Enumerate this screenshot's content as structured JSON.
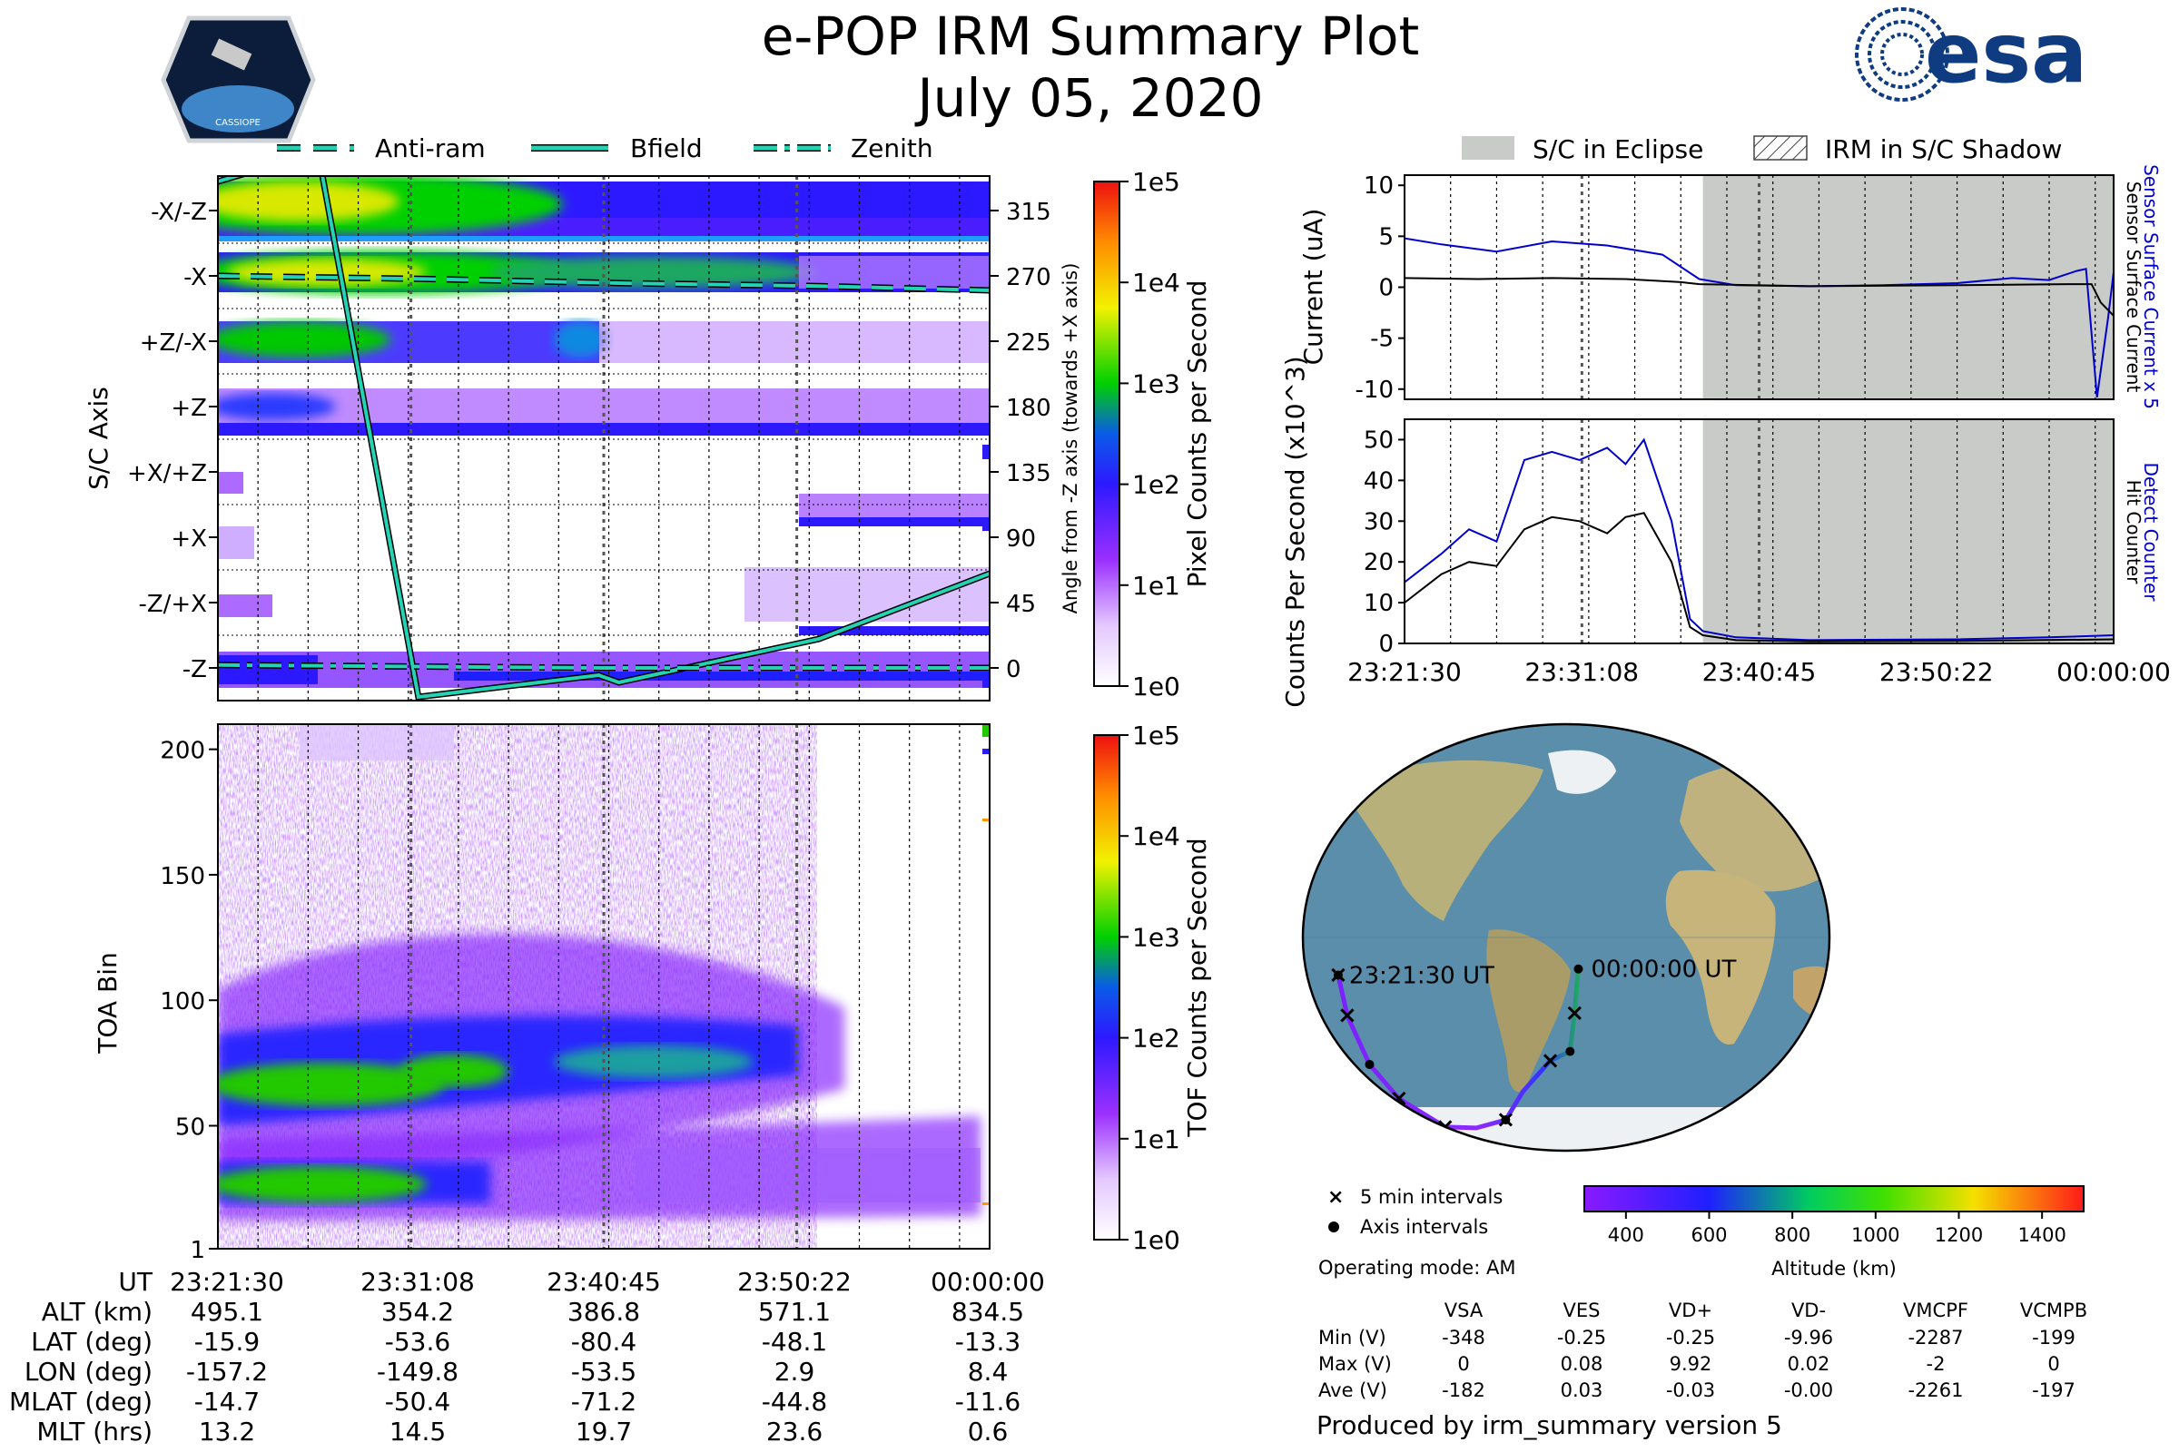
{
  "header": {
    "title": "e-POP IRM Summary Plot",
    "date": "July 05, 2020",
    "logo_left": "CASSIOPE",
    "logo_right": "esa"
  },
  "legend_top_left": [
    {
      "label": "Anti-ram",
      "style": "dashed"
    },
    {
      "label": "Bfield",
      "style": "solid"
    },
    {
      "label": "Zenith",
      "style": "dashdot"
    }
  ],
  "legend_top_right": [
    {
      "label": "S/C in Eclipse",
      "style": "gray"
    },
    {
      "label": "IRM in S/C Shadow",
      "style": "hatch"
    }
  ],
  "colors": {
    "accent_line": "#25d3b4",
    "eclipse_gray": "#c8cbc8",
    "sensor_blue": "#0000cc",
    "ocean": "#5b8eaa",
    "land": "#b5a878"
  },
  "time_ticks": [
    "23:21:30",
    "23:31:08",
    "23:40:45",
    "23:50:22",
    "00:00:00"
  ],
  "chart_data": [
    {
      "type": "heatmap",
      "id": "sc_axis_panel",
      "ylabel": "S/C Axis",
      "y_categories": [
        "-X/-Z",
        "-X",
        "+Z/-X",
        "+Z",
        "+X/+Z",
        "+X",
        "-Z/+X",
        "-Z"
      ],
      "right_axis_label": "Angle from -Z axis (towards +X axis)",
      "right_axis_ticks": [
        315,
        270,
        225,
        180,
        135,
        90,
        45,
        0
      ],
      "colorbar": {
        "label": "Pixel Counts per Second",
        "ticks": [
          "1e5",
          "1e4",
          "1e3",
          "1e2",
          "1e1",
          "1e0"
        ]
      },
      "series": [
        {
          "name": "Anti-ram",
          "x_min": [
            0,
            10,
            20,
            30,
            38.5
          ],
          "angle_deg": [
            270,
            268,
            265,
            263,
            260
          ]
        },
        {
          "name": "Bfield",
          "x_min": [
            0,
            5,
            10,
            19,
            20,
            30,
            38.5
          ],
          "angle_deg": [
            335,
            355,
            -20,
            -5,
            -10,
            20,
            65
          ]
        },
        {
          "name": "Zenith",
          "x_min": [
            0,
            19.2,
            38.5
          ],
          "angle_deg": [
            2,
            0,
            0
          ]
        }
      ]
    },
    {
      "type": "heatmap",
      "id": "toa_panel",
      "ylabel": "TOA Bin",
      "y_ticks": [
        1,
        50,
        100,
        150,
        200
      ],
      "ylim": [
        1,
        210
      ],
      "colorbar": {
        "label": "TOF Counts per Second",
        "ticks": [
          "1e5",
          "1e4",
          "1e3",
          "1e2",
          "1e1",
          "1e0"
        ]
      },
      "bands": [
        {
          "name": "upper",
          "x_min": [
            0,
            10,
            20,
            28
          ],
          "center_bin": [
            62,
            68,
            73,
            78
          ]
        },
        {
          "name": "lower",
          "x_min": [
            0,
            14,
            38.5
          ],
          "center_bin": [
            27,
            25,
            25
          ]
        }
      ]
    },
    {
      "type": "line",
      "id": "current_panel",
      "ylabel": "Current (uA)",
      "ylim": [
        -11,
        11
      ],
      "y_ticks": [
        10,
        5,
        0,
        -5,
        -10
      ],
      "right_labels": [
        "Sensor Surface Current x 5",
        "Sensor Surface Current"
      ],
      "eclipse_start_min": 16.2,
      "series": [
        {
          "name": "Sensor Surface Current x 5",
          "color": "#0000cc",
          "x_min": [
            0,
            2,
            5,
            8,
            11,
            14,
            16,
            18,
            22,
            26,
            30,
            33,
            35,
            36.5,
            37,
            37.6,
            38.2,
            38.5
          ],
          "values": [
            4.8,
            4.2,
            3.5,
            4.5,
            4.1,
            3.2,
            0.8,
            0.2,
            0.1,
            0.2,
            0.4,
            0.9,
            0.7,
            1.6,
            1.8,
            -10.8,
            -3,
            1.5
          ]
        },
        {
          "name": "Sensor Surface Current",
          "color": "#000000",
          "x_min": [
            0,
            4,
            8,
            12,
            15,
            16,
            22,
            30,
            36,
            37.3,
            37.8,
            38.5
          ],
          "values": [
            0.9,
            0.8,
            0.9,
            0.8,
            0.5,
            0.3,
            0.1,
            0.2,
            0.3,
            0.3,
            -1.5,
            -2.8
          ]
        }
      ]
    },
    {
      "type": "line",
      "id": "counts_panel",
      "ylabel": "Counts Per Second (x10^3)",
      "ylim": [
        0,
        55
      ],
      "y_ticks": [
        0,
        10,
        20,
        30,
        40,
        50
      ],
      "right_labels": [
        "Detect Counter",
        "Hit Counter"
      ],
      "eclipse_start_min": 16.2,
      "series": [
        {
          "name": "Detect Counter",
          "color": "#0000cc",
          "x_min": [
            0,
            2,
            3.5,
            5,
            6.5,
            8,
            9.5,
            11,
            12,
            13,
            14.5,
            15.5,
            16.2,
            18,
            22,
            30,
            35,
            38.5
          ],
          "values": [
            15,
            22,
            28,
            25,
            45,
            47,
            45,
            48,
            44,
            50,
            30,
            6,
            3,
            1.5,
            0.8,
            1,
            1.5,
            2
          ]
        },
        {
          "name": "Hit Counter",
          "color": "#000000",
          "x_min": [
            0,
            2,
            3.5,
            5,
            6.5,
            8,
            9.5,
            11,
            12,
            13,
            14.5,
            15.5,
            16.2,
            18,
            22,
            30,
            38.5
          ],
          "values": [
            10,
            17,
            20,
            19,
            28,
            31,
            30,
            27,
            31,
            32,
            20,
            4,
            2,
            0.8,
            0.5,
            0.6,
            1
          ]
        }
      ]
    },
    {
      "type": "scatter",
      "id": "orbit_map",
      "start_label": "23:21:30 UT",
      "end_label": "00:00:00 UT",
      "track_lon": [
        -157.2,
        -155.5,
        -149.8,
        -138,
        -110,
        -82,
        -53.5,
        -35,
        -12,
        2.9,
        6,
        8.4
      ],
      "track_lat": [
        -15.9,
        -33,
        -53.6,
        -68,
        -80,
        -80.4,
        -77,
        -65,
        -52,
        -48.1,
        -32,
        -13.3
      ],
      "legend": [
        "5 min intervals",
        "Axis intervals"
      ],
      "operating_mode": "Operating mode: AM",
      "altitude_colorbar": {
        "label": "Altitude (km)",
        "ticks": [
          "400",
          "600",
          "800",
          "1000",
          "1200",
          "1400"
        ],
        "range": [
          300,
          1500
        ]
      }
    }
  ],
  "ephemeris": {
    "ut_label": "UT",
    "rows": [
      {
        "label": "ALT (km)",
        "values": [
          "495.1",
          "354.2",
          "386.8",
          "571.1",
          "834.5"
        ]
      },
      {
        "label": "LAT (deg)",
        "values": [
          "-15.9",
          "-53.6",
          "-80.4",
          "-48.1",
          "-13.3"
        ]
      },
      {
        "label": "LON (deg)",
        "values": [
          "-157.2",
          "-149.8",
          "-53.5",
          "2.9",
          "8.4"
        ]
      },
      {
        "label": "MLAT (deg)",
        "values": [
          "-14.7",
          "-50.4",
          "-71.2",
          "-44.8",
          "-11.6"
        ]
      },
      {
        "label": "MLT (hrs)",
        "values": [
          "13.2",
          "14.5",
          "19.7",
          "23.6",
          "0.6"
        ]
      }
    ]
  },
  "voltage_table": {
    "columns": [
      "VSA",
      "VES",
      "VD+",
      "VD-",
      "VMCPF",
      "VCMPB"
    ],
    "rows": [
      {
        "label": "Min (V)",
        "values": [
          "-348",
          "-0.25",
          "-0.25",
          "-9.96",
          "-2287",
          "-199"
        ]
      },
      {
        "label": "Max (V)",
        "values": [
          "0",
          "0.08",
          "9.92",
          "0.02",
          "-2",
          "0"
        ]
      },
      {
        "label": "Ave (V)",
        "values": [
          "-182",
          "0.03",
          "-0.03",
          "-0.00",
          "-2261",
          "-197"
        ]
      }
    ]
  },
  "footer": "Produced by irm_summary version 5"
}
